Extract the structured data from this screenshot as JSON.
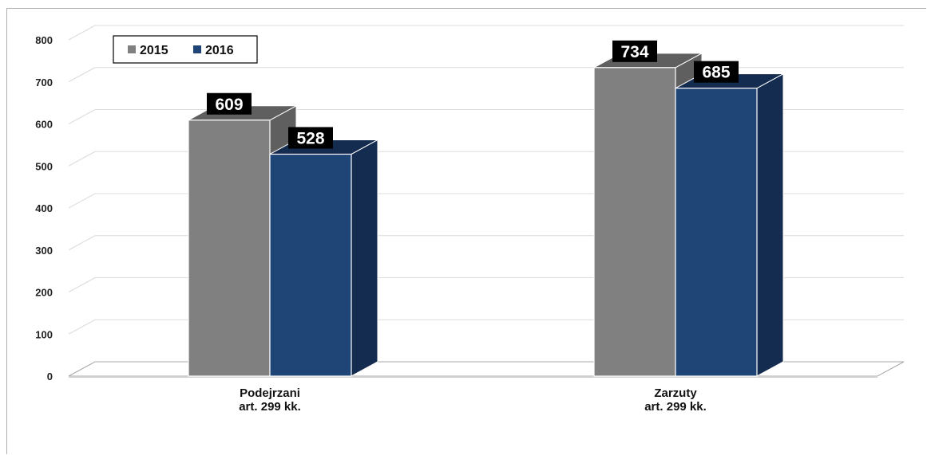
{
  "chart_data": {
    "type": "bar",
    "title": "",
    "xlabel": "",
    "ylabel": "",
    "categories": [
      [
        "Podejrzani",
        "art. 299 kk."
      ],
      [
        "Zarzuty",
        "art. 299 kk."
      ]
    ],
    "series": [
      {
        "name": "2015",
        "values": [
          609,
          734
        ],
        "color": "#808080",
        "side_color": "#5f5f5f"
      },
      {
        "name": "2016",
        "values": [
          528,
          685
        ],
        "color": "#1f4577",
        "side_color": "#142c4f"
      }
    ],
    "ylim": [
      0,
      800
    ],
    "yticks": [
      0,
      100,
      200,
      300,
      400,
      500,
      600,
      700,
      800
    ],
    "grid": true,
    "legend_position": "top-left",
    "data_labels": true,
    "style": "3d-column"
  }
}
